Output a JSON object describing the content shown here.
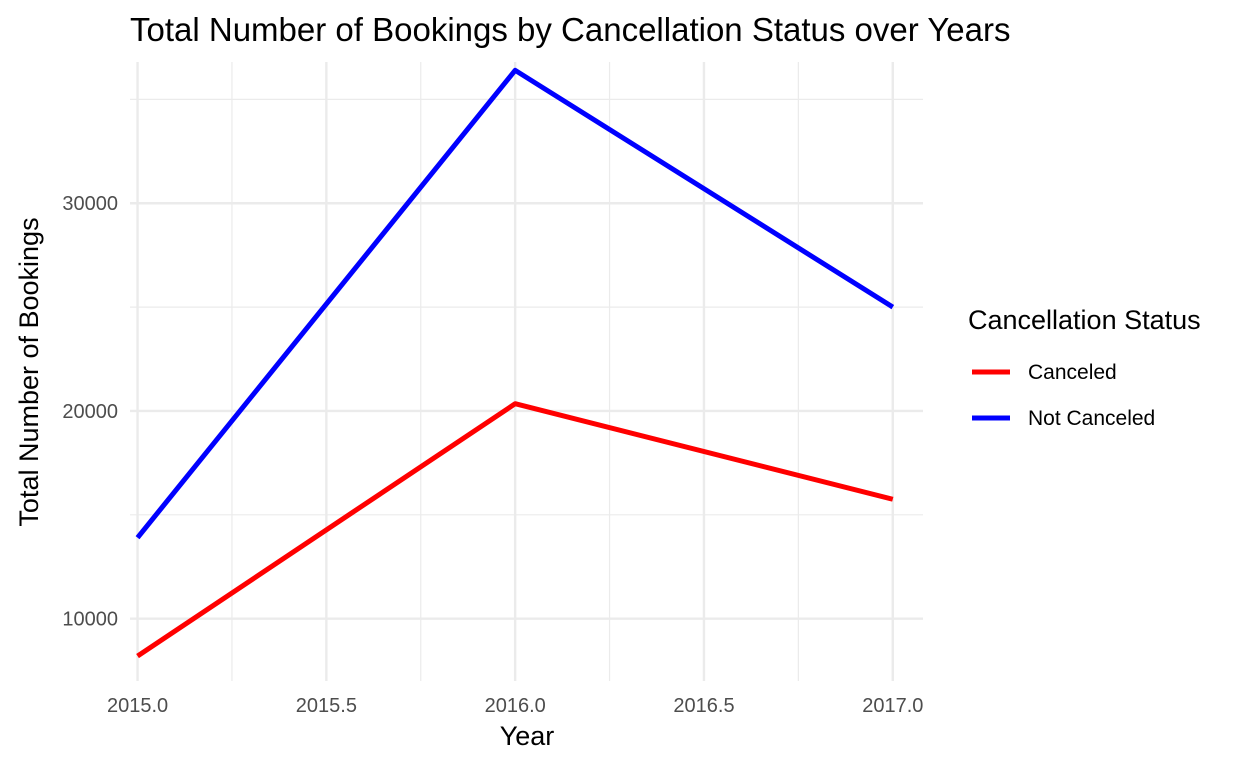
{
  "chart_data": {
    "type": "line",
    "title": "Total Number of Bookings by Cancellation Status over Years",
    "xlabel": "Year",
    "ylabel": "Total Number of Bookings",
    "x": [
      2015,
      2016,
      2017
    ],
    "xlim": [
      2014.98,
      2017.08
    ],
    "ylim": [
      7000,
      36800
    ],
    "x_ticks": [
      2015.0,
      2015.5,
      2016.0,
      2016.5,
      2017.0
    ],
    "x_tick_labels": [
      "2015.0",
      "2015.5",
      "2016.0",
      "2016.5",
      "2017.0"
    ],
    "y_ticks": [
      10000,
      20000,
      30000
    ],
    "y_tick_labels": [
      "10000",
      "20000",
      "30000"
    ],
    "grid": true,
    "legend": {
      "title": "Cancellation Status",
      "placement": "right"
    },
    "series": [
      {
        "name": "Canceled",
        "color": "#ff0000",
        "values": [
          8200,
          20350,
          15750
        ]
      },
      {
        "name": "Not Canceled",
        "color": "#0000ff",
        "values": [
          13900,
          36400,
          25000
        ]
      }
    ]
  }
}
